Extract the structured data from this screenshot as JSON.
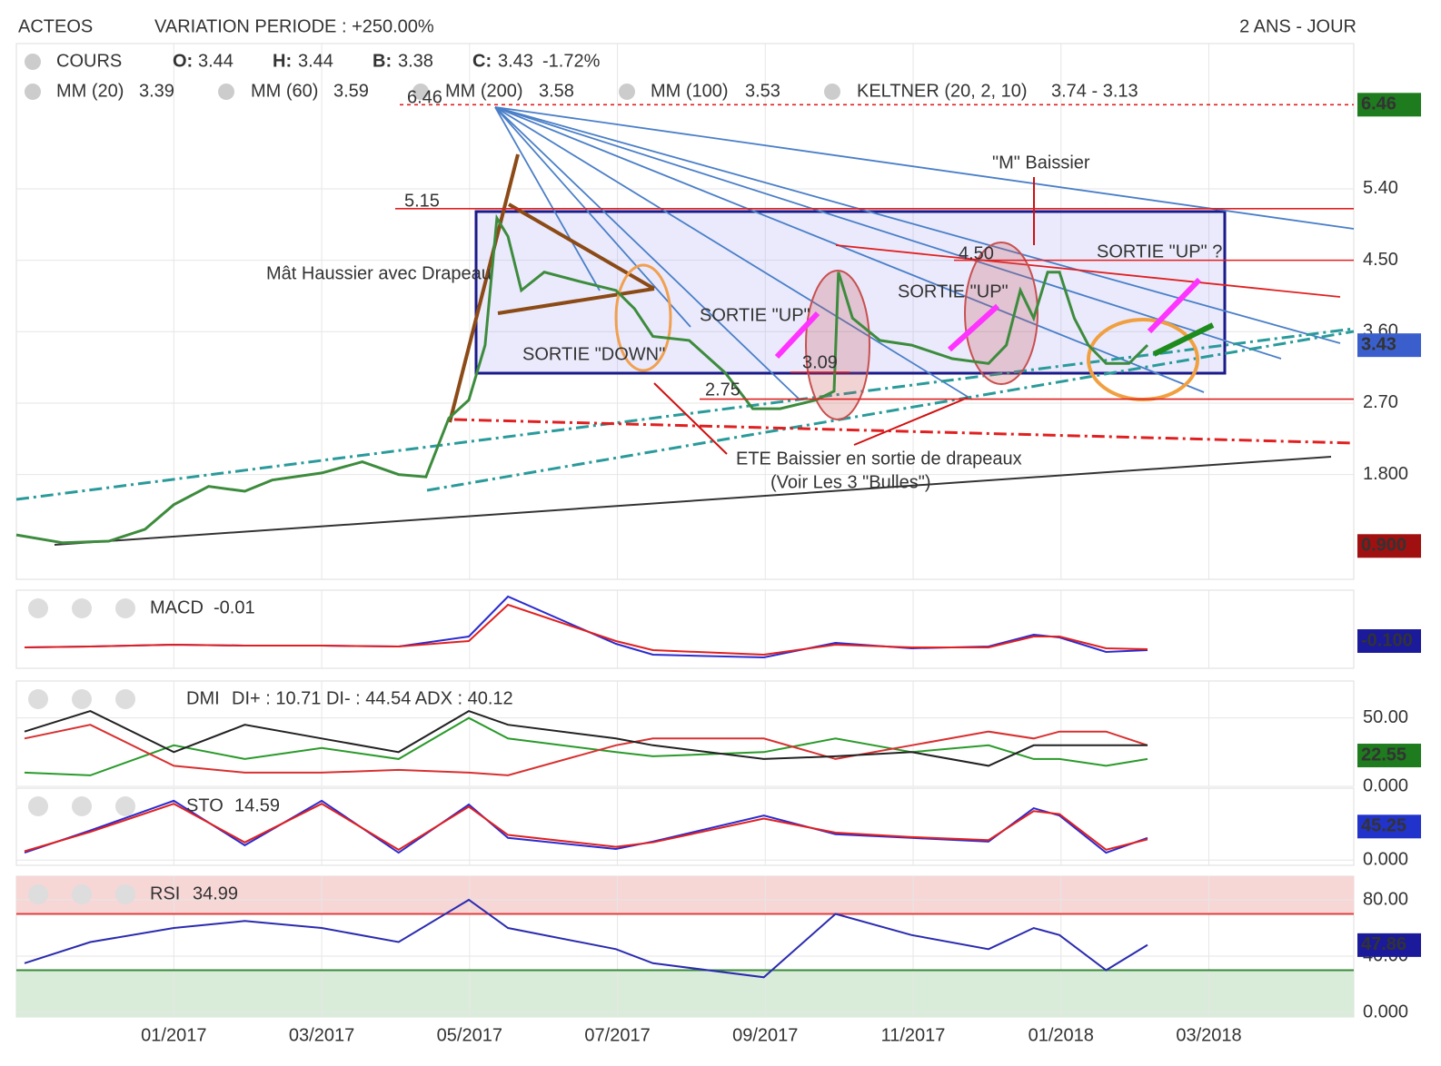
{
  "chart_data": [
    {
      "type": "line",
      "title": "ACTEOS",
      "subtitle": "VARIATION PERIODE : +250.00%",
      "period": "2 ANS - JOUR",
      "x": [
        -2.13,
        -1.5,
        -0.88,
        -0.39,
        0,
        0.47,
        0.96,
        1.33,
        2,
        2.55,
        3.04,
        3.41,
        3.72,
        3.99,
        4.21,
        4.37,
        4.52,
        4.7,
        5.01,
        5.5,
        5.98,
        6.23,
        6.48,
        6.97,
        7.46,
        7.83,
        8.2,
        8.69,
        8.93,
        8.99,
        9.18,
        9.55,
        9.98,
        10.53,
        11.02,
        11.26,
        11.45,
        11.63,
        11.82,
        11.98,
        12.18,
        12.37,
        12.61,
        12.92,
        13.17
      ],
      "series": [
        {
          "name": "COURS",
          "color": "#3d8b3d",
          "values": [
            1.04,
            0.94,
            0.96,
            1.11,
            1.42,
            1.65,
            1.59,
            1.73,
            1.82,
            1.96,
            1.8,
            1.77,
            2.51,
            2.74,
            3.43,
            5.03,
            4.8,
            4.12,
            4.35,
            4.23,
            4.12,
            3.89,
            3.54,
            3.49,
            3.08,
            2.63,
            2.63,
            2.74,
            2.85,
            4.35,
            3.77,
            3.49,
            3.43,
            3.26,
            3.2,
            3.43,
            4.12,
            3.77,
            4.35,
            4.35,
            3.77,
            3.43,
            3.2,
            3.2,
            3.43
          ]
        }
      ],
      "ohlc": [
        {
          "label": "O:",
          "value": 3.44
        },
        {
          "label": "H:",
          "value": 3.44
        },
        {
          "label": "B:",
          "value": 3.38
        },
        {
          "label": "C:",
          "value": 3.43
        }
      ],
      "change": "-1.72%",
      "overlays": [
        {
          "name": "MM (20)",
          "value": 3.39,
          "color": "#e01010"
        },
        {
          "name": "MM (60)",
          "value": 3.59,
          "color": "#f0a020"
        },
        {
          "name": "MM (200)",
          "value": 3.58,
          "color": "#2a9a2a"
        },
        {
          "name": "MM (100)",
          "value": 3.53,
          "color": "#30c0c8"
        },
        {
          "name": "KELTNER (20, 2, 10)",
          "value": "3.74 - 3.13",
          "color": "#1e7b1e"
        }
      ],
      "xlim": [
        -2.13,
        15.96
      ],
      "xticks": [
        {
          "value": 0,
          "label": "01/2017"
        },
        {
          "value": 2,
          "label": "03/2017"
        },
        {
          "value": 4,
          "label": "05/2017"
        },
        {
          "value": 6,
          "label": "07/2017"
        },
        {
          "value": 8,
          "label": "09/2017"
        },
        {
          "value": 10,
          "label": "11/2017"
        },
        {
          "value": 12,
          "label": "01/2018"
        },
        {
          "value": 14,
          "label": "03/2018"
        }
      ],
      "ylim": [
        0.48,
        7.23
      ],
      "yticks": [
        {
          "value": 1.8,
          "label": "1.800"
        },
        {
          "value": 2.7,
          "label": "2.70"
        },
        {
          "value": 3.6,
          "label": "3.60"
        },
        {
          "value": 4.5,
          "label": "4.50"
        },
        {
          "value": 5.4,
          "label": "5.40"
        }
      ],
      "badges": [
        {
          "value": 6.46,
          "color": "#1e7b1e"
        },
        {
          "value": 3.43,
          "color": "#3a5fcd"
        },
        {
          "value": 0.9,
          "label": "0.900",
          "color": "#a01010"
        }
      ],
      "levels": [
        6.46,
        5.15,
        {
          "value": 4.5,
          "label": "4.50"
        },
        3.09,
        2.75
      ],
      "annotations": [
        {
          "text": "Mât Haussier avec Drapeau",
          "color": "#8b4a16"
        },
        {
          "text": "SORTIE \"DOWN\"",
          "color": "#8b4a16"
        },
        {
          "text": "SORTIE \"UP\"",
          "color": "#ff22ff"
        },
        {
          "text": "SORTIE \"UP\"",
          "color": "#ff22ff"
        },
        {
          "text": "SORTIE \"UP\" ?",
          "color": "#ff22ff"
        },
        {
          "text": "\"M\" Baissier",
          "color": "#d01010"
        },
        {
          "text": "ETE Baissier en sortie de drapeaux",
          "color": "#d01010"
        },
        {
          "text": "(Voir Les 3 \"Bulles\")",
          "color": "#d01010"
        }
      ],
      "grid": true
    },
    {
      "type": "line",
      "title": "MACD",
      "readout": -0.01,
      "x": [
        -2.02,
        -1.13,
        0,
        0.96,
        2,
        3.04,
        3.99,
        4.52,
        5.98,
        6.48,
        7.98,
        8.95,
        9.98,
        11.02,
        11.63,
        11.98,
        12.61,
        13.17
      ],
      "series": [
        {
          "name": "MACD",
          "color": "#2b2bd0",
          "values": [
            -0.17,
            -0.16,
            -0.14,
            -0.15,
            -0.15,
            -0.16,
            -0.05,
            0.39,
            -0.13,
            -0.25,
            -0.28,
            -0.12,
            -0.18,
            -0.16,
            -0.03,
            -0.06,
            -0.22,
            -0.2
          ]
        },
        {
          "name": "Signal",
          "color": "#e02020",
          "values": [
            -0.17,
            -0.16,
            -0.14,
            -0.15,
            -0.15,
            -0.16,
            -0.1,
            0.3,
            -0.1,
            -0.2,
            -0.25,
            -0.14,
            -0.17,
            -0.17,
            -0.05,
            -0.05,
            -0.18,
            -0.19
          ]
        }
      ],
      "xlim": [
        -2.13,
        15.96
      ],
      "ylim": [
        -0.4,
        0.46
      ],
      "yticks": [],
      "badges": [
        {
          "value": -0.1,
          "label": "-0.100",
          "color": "#1a1a9a"
        }
      ]
    },
    {
      "type": "line",
      "title": "DMI",
      "readout": "DI+ : 10.71 DI- : 44.54 ADX : 40.12",
      "x": [
        -2.02,
        -1.13,
        0,
        0.96,
        2,
        3.04,
        3.99,
        4.52,
        5.98,
        6.48,
        7.98,
        8.95,
        9.98,
        11.02,
        11.63,
        11.98,
        12.61,
        13.17
      ],
      "series": [
        {
          "name": "DI+",
          "color": "#2a9a2a",
          "values": [
            10,
            8,
            30,
            20,
            28,
            20,
            50,
            35,
            25,
            22,
            25,
            35,
            25,
            30,
            20,
            20,
            15,
            20
          ]
        },
        {
          "name": "DI-",
          "color": "#d83030",
          "values": [
            35,
            45,
            15,
            10,
            10,
            12,
            10,
            8,
            30,
            35,
            35,
            20,
            30,
            40,
            35,
            40,
            40,
            30
          ]
        },
        {
          "name": "ADX",
          "color": "#222222",
          "values": [
            40,
            55,
            25,
            45,
            35,
            25,
            55,
            45,
            35,
            30,
            20,
            22,
            25,
            15,
            30,
            30,
            30,
            30
          ]
        }
      ],
      "xlim": [
        -2.13,
        15.96
      ],
      "ylim": [
        0,
        77
      ],
      "yticks": [
        {
          "value": 0,
          "label": "0.000"
        },
        {
          "value": 50,
          "label": "50.00"
        }
      ],
      "badges": [
        {
          "value": 22.55,
          "color": "#1e7b1e"
        }
      ]
    },
    {
      "type": "line",
      "title": "STO",
      "readout": 14.59,
      "x": [
        -2.02,
        -1.13,
        0,
        0.96,
        2,
        3.04,
        3.99,
        4.52,
        5.98,
        6.48,
        7.98,
        8.95,
        9.98,
        11.02,
        11.63,
        11.98,
        12.61,
        13.17
      ],
      "series": [
        {
          "name": "%K",
          "color": "#2b2bd0",
          "values": [
            10,
            40,
            80,
            20,
            80,
            10,
            75,
            30,
            15,
            25,
            60,
            35,
            30,
            25,
            70,
            60,
            10,
            30
          ]
        },
        {
          "name": "%D",
          "color": "#e02020",
          "values": [
            12,
            38,
            76,
            24,
            76,
            14,
            72,
            34,
            18,
            24,
            56,
            37,
            31,
            27,
            66,
            62,
            14,
            28
          ]
        }
      ],
      "xlim": [
        -2.13,
        15.96
      ],
      "ylim": [
        -7,
        97
      ],
      "yticks": [
        {
          "value": 0,
          "label": "0.000"
        }
      ],
      "badges": [
        {
          "value": 45.25,
          "color": "#2233cc"
        }
      ]
    },
    {
      "type": "line",
      "title": "RSI",
      "readout": 34.99,
      "x": [
        -2.02,
        -1.13,
        0,
        0.96,
        2,
        3.04,
        3.99,
        4.52,
        5.98,
        6.48,
        7.98,
        8.95,
        9.98,
        11.02,
        11.63,
        11.98,
        12.61,
        13.17
      ],
      "series": [
        {
          "name": "RSI",
          "color": "#2b2bb0",
          "values": [
            35,
            50,
            60,
            65,
            60,
            50,
            80,
            60,
            45,
            35,
            25,
            70,
            55,
            45,
            60,
            55,
            30,
            48
          ]
        }
      ],
      "xlim": [
        -2.13,
        15.96
      ],
      "ylim": [
        -3.2,
        96.8
      ],
      "yticks": [
        {
          "value": 0,
          "label": "0.000"
        },
        {
          "value": 40,
          "label": "40.00"
        },
        {
          "value": 80,
          "label": "80.00"
        }
      ],
      "upper_band": 70,
      "lower_band": 30,
      "badges": [
        {
          "value": 47.86,
          "color": "#1a1a9a"
        }
      ]
    }
  ]
}
